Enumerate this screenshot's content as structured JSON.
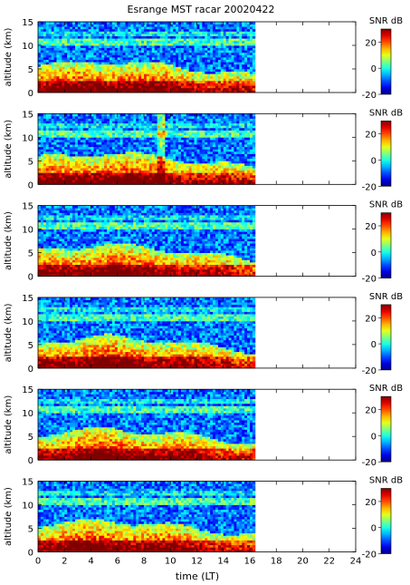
{
  "title": "Esrange MST racar 20020422",
  "colors": {
    "axis": "#000000",
    "background": "#ffffff"
  },
  "colorbar": {
    "label": "SNR dB",
    "range": [
      -20,
      30
    ],
    "ticks": [
      -20,
      0,
      20
    ],
    "colormap": "jet"
  },
  "chart_data": {
    "type": "heatmap",
    "title": "Esrange MST racar 20020422",
    "xlabel": "time (LT)",
    "ylabel": "altitude (km)",
    "xlim": [
      0,
      24
    ],
    "ylim": [
      0,
      15
    ],
    "xticks": [
      0,
      2,
      4,
      6,
      8,
      10,
      12,
      14,
      16,
      18,
      20,
      22,
      24
    ],
    "yticks": [
      0,
      5,
      10,
      15
    ],
    "data_time_range": [
      0,
      16.4
    ],
    "color_label": "SNR dB",
    "color_range": [
      -20,
      30
    ],
    "color_ticks": [
      -20,
      0,
      20
    ],
    "panels": [
      {
        "panel": 1,
        "ylabel": "altitude (km)",
        "color_label": "SNR dB"
      },
      {
        "panel": 2,
        "ylabel": "altitude (km)",
        "color_label": "SNR dB"
      },
      {
        "panel": 3,
        "ylabel": "altitude (km)",
        "color_label": "SNR dB"
      },
      {
        "panel": 4,
        "ylabel": "altitude (km)",
        "color_label": "SNR dB"
      },
      {
        "panel": 5,
        "ylabel": "altitude (km)",
        "color_label": "SNR dB"
      },
      {
        "panel": 6,
        "ylabel": "altitude (km)",
        "color_label": "SNR dB"
      }
    ]
  }
}
